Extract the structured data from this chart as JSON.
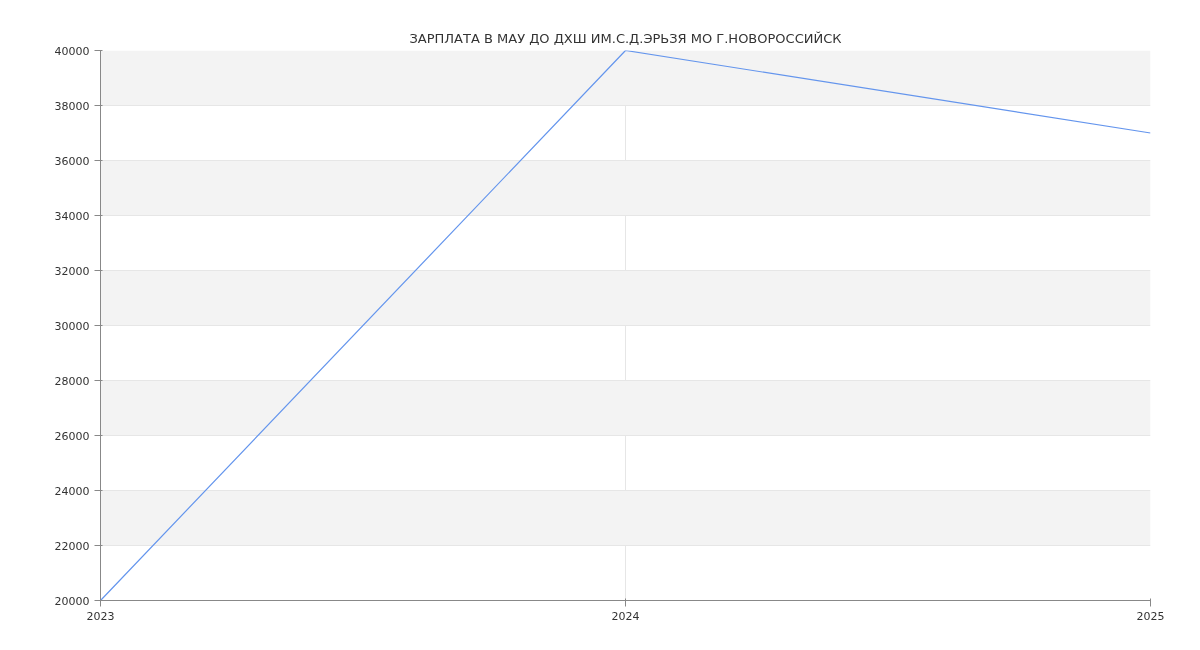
{
  "chart_data": {
    "type": "line",
    "title": "ЗАРПЛАТА В МАУ ДО ДХШ ИМ.С.Д.ЭРЬЗЯ МО Г.НОВОРОССИЙСК",
    "x": [
      2023,
      2024,
      2025
    ],
    "series": [
      {
        "color": "#6495ed",
        "values": [
          20000,
          40000,
          37000
        ]
      }
    ],
    "xlim": [
      2023,
      2025
    ],
    "xticks": [
      2023,
      2024,
      2025
    ],
    "ylim": [
      20000,
      40000
    ],
    "yticks": [
      20000,
      22000,
      24000,
      26000,
      28000,
      30000,
      32000,
      34000,
      36000,
      38000,
      40000
    ],
    "grid": true,
    "marker": "none",
    "line_style": "solid"
  }
}
